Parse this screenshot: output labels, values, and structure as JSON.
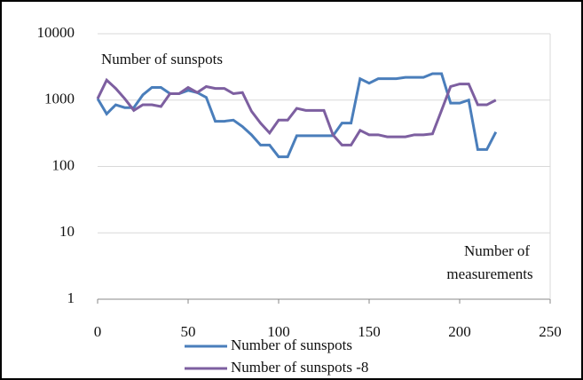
{
  "chart_data": {
    "type": "line",
    "annotations": [
      "Number of sunspots",
      "Number of",
      "measurements"
    ],
    "x": [
      0,
      5,
      10,
      15,
      20,
      25,
      30,
      35,
      40,
      45,
      50,
      55,
      60,
      65,
      70,
      75,
      80,
      85,
      90,
      95,
      100,
      105,
      110,
      115,
      120,
      125,
      130,
      135,
      140,
      145,
      150,
      155,
      160,
      165,
      170,
      175,
      180,
      185,
      190,
      195,
      200,
      205,
      210,
      215,
      220
    ],
    "series": [
      {
        "name": "Number of sunspots",
        "color": "#4a7ebb",
        "values": [
          1050,
          620,
          850,
          770,
          770,
          1200,
          1550,
          1550,
          1250,
          1250,
          1400,
          1300,
          1100,
          480,
          480,
          500,
          400,
          300,
          210,
          210,
          140,
          140,
          290,
          290,
          290,
          290,
          290,
          450,
          450,
          2100,
          1800,
          2100,
          2100,
          2100,
          2200,
          2200,
          2200,
          2500,
          2500,
          900,
          900,
          1000,
          180,
          180,
          330
        ]
      },
      {
        "name": "Number of sunspots -8",
        "color": "#7d5fa0",
        "values": [
          1050,
          2000,
          1500,
          1050,
          700,
          850,
          850,
          800,
          1250,
          1250,
          1550,
          1300,
          1600,
          1500,
          1500,
          1250,
          1300,
          680,
          450,
          320,
          500,
          500,
          750,
          700,
          700,
          700,
          300,
          210,
          210,
          350,
          300,
          300,
          280,
          280,
          280,
          300,
          300,
          310,
          700,
          1600,
          1750,
          1750,
          850,
          850,
          1000
        ]
      }
    ],
    "xlim": [
      0,
      250
    ],
    "xticks": [
      0,
      50,
      100,
      150,
      200,
      250
    ],
    "ylim": [
      1,
      10000
    ],
    "yticks": [
      1,
      10,
      100,
      1000,
      10000
    ],
    "log_y": true,
    "grid": true,
    "legend": "bottom"
  }
}
